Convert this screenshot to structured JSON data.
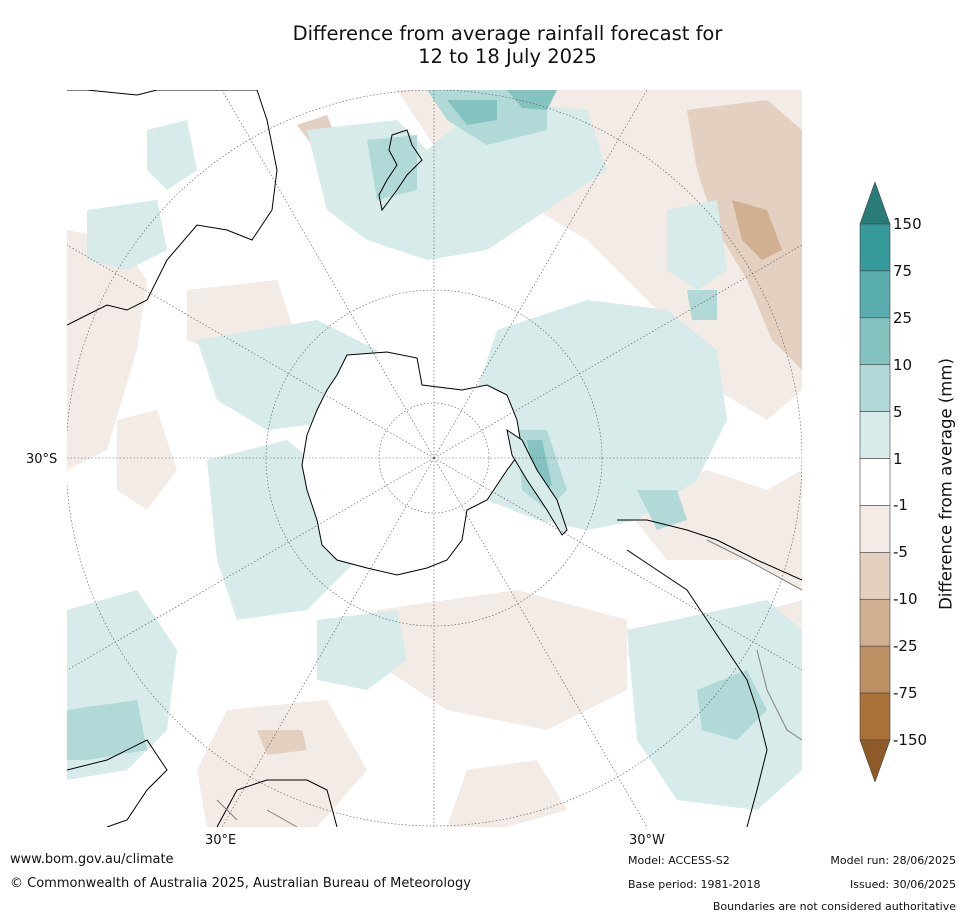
{
  "title": {
    "line1": "Difference from average rainfall forecast for",
    "line2": "12 to 18 July 2025"
  },
  "map": {
    "projection": "south-polar-stereographic",
    "lat_label": "30°S",
    "lon_labels": [
      "30°E",
      "30°W"
    ],
    "colors": {
      "land_outline": "#000000",
      "boundary": "#808080",
      "graticule": "#555555"
    }
  },
  "colorbar": {
    "title": "Difference from average (mm)",
    "ticks": [
      "150",
      "75",
      "25",
      "10",
      "5",
      "1",
      "-1",
      "-5",
      "-10",
      "-25",
      "-75",
      "-150"
    ],
    "colors": [
      "#2a7c79",
      "#36999a",
      "#5aadad",
      "#85c3c1",
      "#b0d9d7",
      "#d6ebea",
      "#ffffff",
      "#f3ebe6",
      "#e3d0c1",
      "#d0b091",
      "#bd9063",
      "#a97038",
      "#8e5a26"
    ],
    "extend": "both"
  },
  "footer": {
    "url": "www.bom.gov.au/climate",
    "copyright": "© Commonwealth of Australia 2025, Australian Bureau of Meteorology",
    "model": "Model: ACCESS-S2",
    "base_period": "Base period: 1981-2018",
    "model_run": "Model run: 28/06/2025",
    "issued": "Issued: 30/06/2025",
    "disclaimer": "Boundaries are not considered authoritative"
  }
}
